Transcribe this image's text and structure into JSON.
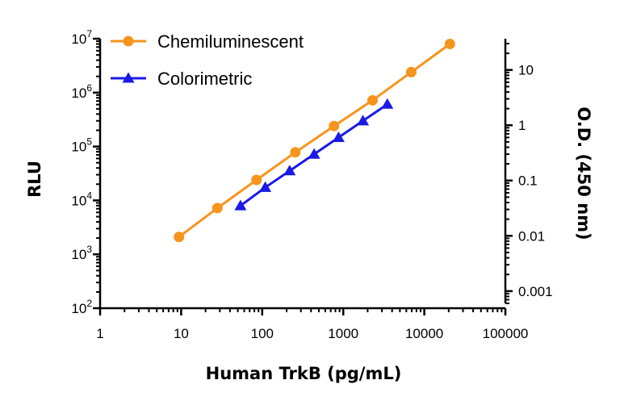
{
  "chart_data": {
    "type": "scatter",
    "xlabel": "Human TrkB (pg/mL)",
    "ylabel_left": "RLU",
    "ylabel_right": "O.D. (450 nm)",
    "xscale": "log",
    "yscale_left": "log",
    "yscale_right": "log",
    "xlim": [
      1,
      100000
    ],
    "ylim_left": [
      100,
      10000000
    ],
    "ylim_right": [
      0.0006,
      30
    ],
    "x_ticks": [
      {
        "value": 1,
        "label": "1"
      },
      {
        "value": 10,
        "label": "10"
      },
      {
        "value": 100,
        "label": "100"
      },
      {
        "value": 1000,
        "label": "1000"
      },
      {
        "value": 10000,
        "label": "10000"
      },
      {
        "value": 100000,
        "label": "100000"
      }
    ],
    "y_left_ticks": [
      {
        "value": 100,
        "base": "10",
        "exp": "2"
      },
      {
        "value": 1000,
        "base": "10",
        "exp": "3"
      },
      {
        "value": 10000,
        "base": "10",
        "exp": "4"
      },
      {
        "value": 100000,
        "base": "10",
        "exp": "5"
      },
      {
        "value": 1000000,
        "base": "10",
        "exp": "6"
      },
      {
        "value": 10000000,
        "base": "10",
        "exp": "7"
      }
    ],
    "y_right_ticks": [
      {
        "value": 0.001,
        "label": "0.001"
      },
      {
        "value": 0.01,
        "label": "0.01"
      },
      {
        "value": 0.1,
        "label": "0.1"
      },
      {
        "value": 1,
        "label": "1"
      },
      {
        "value": 10,
        "label": "10"
      }
    ],
    "legend_position": "top-left",
    "grid": false,
    "series": [
      {
        "name": "Chemiluminescent",
        "axis": "left",
        "color": "#F7941D",
        "marker": "circle",
        "x": [
          9.4,
          28,
          85,
          256,
          768,
          2300,
          6900,
          20700
        ],
        "y": [
          2100,
          7200,
          24000,
          78000,
          240000,
          720000,
          2400000,
          8000000
        ]
      },
      {
        "name": "Colorimetric",
        "axis": "right",
        "color": "#1A1AE6",
        "marker": "triangle",
        "x": [
          54,
          109,
          218,
          437,
          875,
          1750,
          3500
        ],
        "y": [
          0.035,
          0.075,
          0.15,
          0.3,
          0.6,
          1.2,
          2.4
        ]
      }
    ]
  }
}
